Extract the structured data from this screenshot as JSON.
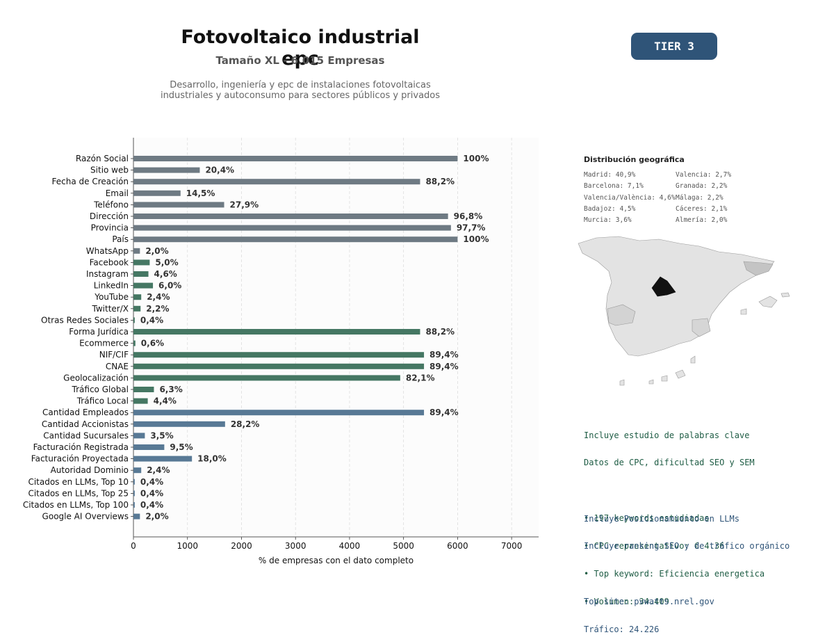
{
  "header": {
    "title": "Fotovoltaico industrial epc",
    "subtitle": "Tamaño XL - 6.015 Empresas",
    "description_line1": "Desarrollo, ingeniería y epc de instalaciones fotovoltaicas",
    "description_line2": "industriales y autoconsumo para sectores públicos y privados",
    "tier": "TIER 3"
  },
  "colors": {
    "gray": "#6e7a83",
    "green": "#457763",
    "blue": "#587995",
    "tier_bg": "#2f5478"
  },
  "chart_data": {
    "type": "bar",
    "orientation": "horizontal",
    "xlabel": "% de empresas con el dato completo",
    "xlim": [
      0,
      7500
    ],
    "xticks": [
      0,
      1000,
      2000,
      3000,
      4000,
      5000,
      6000,
      7000
    ],
    "grid": "vertical dashed",
    "categories": [
      "Razón Social",
      "Sitio web",
      "Fecha de Creación",
      "Email",
      "Teléfono",
      "Dirección",
      "Provincia",
      "País",
      "WhatsApp",
      "Facebook",
      "Instagram",
      "LinkedIn",
      "YouTube",
      "Twitter/X",
      "Otras Redes Sociales",
      "Forma Jurídica",
      "Ecommerce",
      "NIF/CIF",
      "CNAE",
      "Geolocalización",
      "Tráfico Global",
      "Tráfico Local",
      "Cantidad Empleados",
      "Cantidad Accionistas",
      "Cantidad Sucursales",
      "Facturación Registrada",
      "Facturación Proyectada",
      "Autoridad Dominio",
      "Citados en LLMs, Top 10",
      "Citados en LLMs, Top 25",
      "Citados en LLMs, Top 100",
      "Google AI Overviews"
    ],
    "values": [
      6000,
      1228,
      5306,
      872,
      1679,
      5823,
      5877,
      6000,
      120,
      301,
      277,
      361,
      144,
      132,
      24,
      5306,
      36,
      5378,
      5378,
      4938,
      379,
      265,
      5378,
      1696,
      211,
      571,
      1083,
      144,
      24,
      24,
      24,
      120
    ],
    "labels": [
      "100%",
      "20,4%",
      "88,2%",
      "14,5%",
      "27,9%",
      "96,8%",
      "97,7%",
      "100%",
      "2,0%",
      "5,0%",
      "4,6%",
      "6,0%",
      "2,4%",
      "2,2%",
      "0,4%",
      "88,2%",
      "0,6%",
      "89,4%",
      "89,4%",
      "82,1%",
      "6,3%",
      "4,4%",
      "89,4%",
      "28,2%",
      "3,5%",
      "9,5%",
      "18,0%",
      "2,4%",
      "0,4%",
      "0,4%",
      "0,4%",
      "2,0%"
    ],
    "groups": [
      "gray",
      "gray",
      "gray",
      "gray",
      "gray",
      "gray",
      "gray",
      "gray",
      "gray",
      "green",
      "green",
      "green",
      "green",
      "green",
      "green",
      "green",
      "green",
      "green",
      "green",
      "green",
      "green",
      "green",
      "blue",
      "blue",
      "blue",
      "blue",
      "blue",
      "blue",
      "blue",
      "blue",
      "blue",
      "blue"
    ]
  },
  "geo": {
    "title": "Distribución geográfica",
    "col1": [
      "Madrid: 40,9%",
      "Barcelona: 7,1%",
      "Valencia/València: 4,6%",
      "Badajoz: 4,5%",
      "Murcia: 3,6%"
    ],
    "col2": [
      "Valencia: 2,7%",
      "Granada: 2,2%",
      "Málaga: 2,2%",
      "Cáceres: 2,1%",
      "Almería: 2,0%"
    ]
  },
  "keywords": {
    "line1": "Incluye estudio de palabras clave",
    "line2": "Datos de CPC, dificultad SEO y SEM",
    "bullets": [
      "• 197 keywords estudiadas",
      "• CPC representativo: € 4.36",
      "• Top keyword: Eficiencia energetica",
      "• Volumen: 34.409"
    ]
  },
  "llm": {
    "line1": "Incluye Posicionamiento en LLMs",
    "line2": "Incluye ranking SEO y de tráfico orgánico",
    "top_site": "Top site: pvwatts.nrel.gov",
    "traffic": "Tráfico: 24.226"
  }
}
